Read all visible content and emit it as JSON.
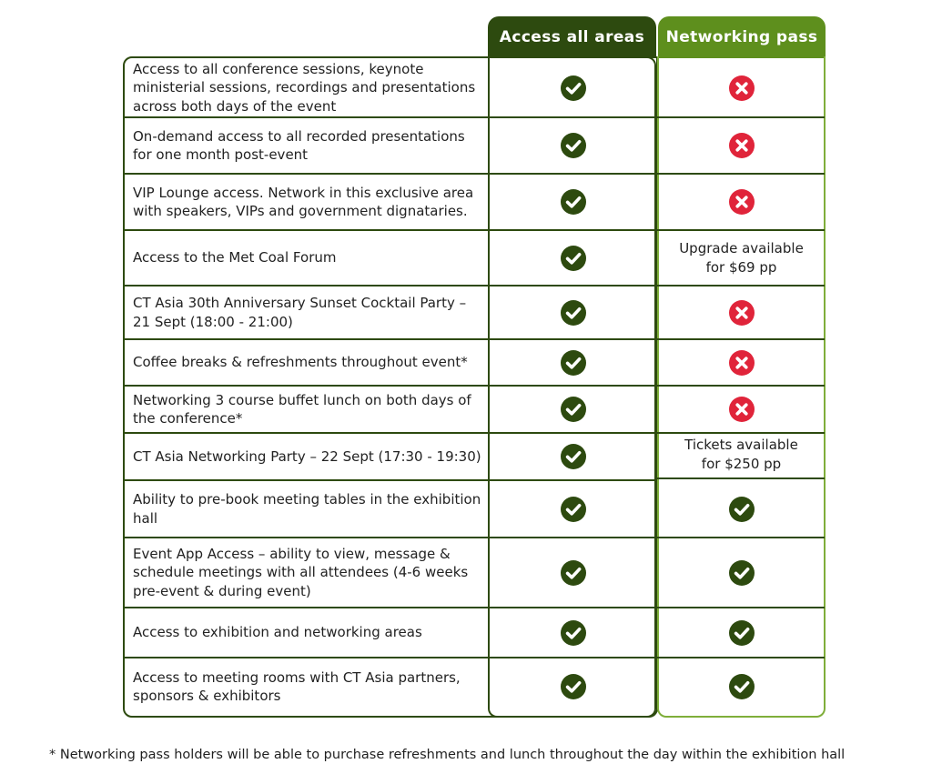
{
  "headers": {
    "access_all_areas": "Access all areas",
    "networking_pass": "Networking pass"
  },
  "colors": {
    "dark_green": "#2d4a0f",
    "light_green": "#5e8f1d",
    "cross_red": "#e0243a"
  },
  "rows": [
    {
      "feature": "Access to all conference sessions, keynote ministerial sessions, recordings and presentations across both days of the event",
      "access_all_areas": "check",
      "networking_pass": "cross"
    },
    {
      "feature": "On-demand access to all recorded presentations for one month post-event",
      "access_all_areas": "check",
      "networking_pass": "cross"
    },
    {
      "feature": "VIP Lounge access. Network in this exclusive area with speakers, VIPs and government dignataries.",
      "access_all_areas": "check",
      "networking_pass": "cross"
    },
    {
      "feature": "Access to the Met Coal Forum",
      "access_all_areas": "check",
      "networking_pass": "Upgrade available for $69 pp"
    },
    {
      "feature": "CT Asia 30th Anniversary Sunset Cocktail Party – 21 Sept (18:00 - 21:00)",
      "access_all_areas": "check",
      "networking_pass": "cross"
    },
    {
      "feature": "Coffee breaks & refreshments throughout event*",
      "access_all_areas": "check",
      "networking_pass": "cross"
    },
    {
      "feature": "Networking 3 course buffet lunch on both days of the conference*",
      "access_all_areas": "check",
      "networking_pass": "cross"
    },
    {
      "feature": "CT Asia Networking Party – 22 Sept (17:30 - 19:30)",
      "access_all_areas": "check",
      "networking_pass": "Tickets available for $250 pp"
    },
    {
      "feature": "Ability to pre-book meeting tables in the exhibition hall",
      "access_all_areas": "check",
      "networking_pass": "check"
    },
    {
      "feature": "Event App Access – ability to view, message & schedule meetings with all attendees (4-6 weeks pre-event & during event)",
      "access_all_areas": "check",
      "networking_pass": "check"
    },
    {
      "feature": "Access to exhibition and networking areas",
      "access_all_areas": "check",
      "networking_pass": "check"
    },
    {
      "feature": "Access to meeting rooms with CT Asia partners, sponsors & exhibitors",
      "access_all_areas": "check",
      "networking_pass": "check"
    }
  ],
  "footnote": "* Networking pass holders will be able to purchase refreshments and lunch throughout the day within the exhibition hall"
}
